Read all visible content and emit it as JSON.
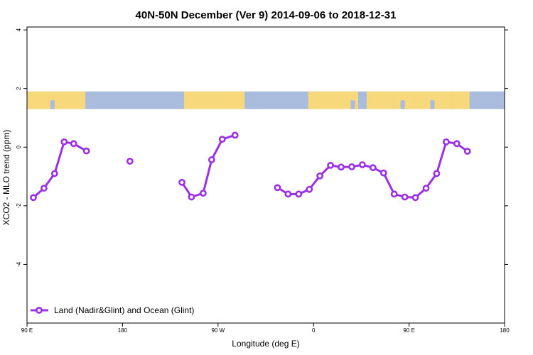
{
  "chart_data": {
    "type": "line",
    "title": "40N-50N December (Ver 9)   2014-09-06 to 2018-12-31",
    "xlabel": "Longitude (deg E)",
    "ylabel": "XCO2 - MLO trend (ppm)",
    "xlim": [
      90,
      540
    ],
    "ylim": [
      -6,
      4.1
    ],
    "x_ticks": [
      {
        "value": 90,
        "label": "90 E"
      },
      {
        "value": 180,
        "label": "180"
      },
      {
        "value": 270,
        "label": "90 W"
      },
      {
        "value": 360,
        "label": "0"
      },
      {
        "value": 450,
        "label": "90 E"
      },
      {
        "value": 540,
        "label": "180"
      }
    ],
    "y_ticks": [
      {
        "value": 4,
        "label": "4"
      },
      {
        "value": 2,
        "label": "2"
      },
      {
        "value": 0,
        "label": "0"
      },
      {
        "value": -2,
        "label": "-2"
      },
      {
        "value": -4,
        "label": "-4"
      }
    ],
    "land_ocean_band": {
      "y_top": 1.9,
      "y_bottom": 1.3,
      "land_color": "#f7d87a",
      "ocean_color": "#a9bcde"
    },
    "legend": {
      "position": "bottom-left"
    },
    "series": [
      {
        "name": "Land (Nadir&Glint) and Ocean (Glint)",
        "color": "#9b30e6",
        "segments": [
          [
            [
              96,
              -1.72
            ],
            [
              106,
              -1.4
            ],
            [
              116,
              -0.9
            ],
            [
              125,
              0.18
            ],
            [
              134,
              0.12
            ],
            [
              146,
              -0.13
            ]
          ],
          [
            [
              187,
              -0.48
            ]
          ],
          [
            [
              236,
              -1.2
            ],
            [
              245,
              -1.7
            ],
            [
              256,
              -1.57
            ],
            [
              264,
              -0.43
            ],
            [
              274,
              0.27
            ],
            [
              286,
              0.41
            ]
          ],
          [
            [
              326,
              -1.38
            ],
            [
              336,
              -1.6
            ],
            [
              346,
              -1.6
            ],
            [
              356,
              -1.44
            ],
            [
              366,
              -0.98
            ],
            [
              376,
              -0.62
            ],
            [
              386,
              -0.68
            ],
            [
              396,
              -0.67
            ],
            [
              406,
              -0.6
            ],
            [
              416,
              -0.7
            ],
            [
              426,
              -0.88
            ],
            [
              436,
              -1.6
            ],
            [
              446,
              -1.7
            ],
            [
              456,
              -1.72
            ],
            [
              466,
              -1.4
            ],
            [
              476,
              -0.9
            ],
            [
              485,
              0.18
            ],
            [
              495,
              0.12
            ],
            [
              505,
              -0.14
            ]
          ]
        ]
      }
    ]
  }
}
